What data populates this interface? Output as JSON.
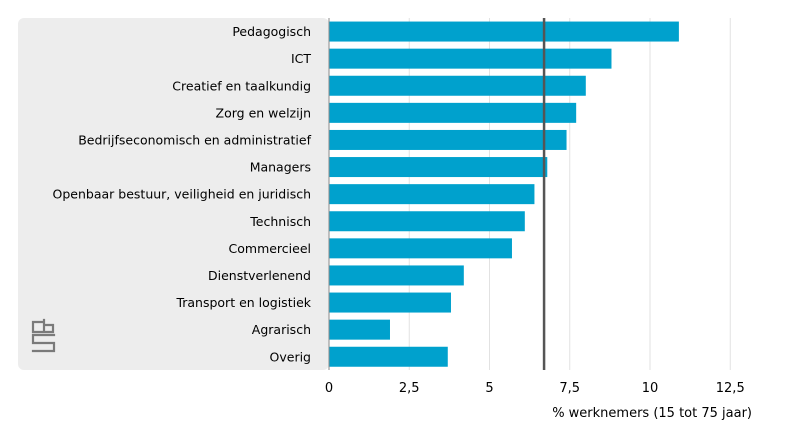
{
  "chart_data": {
    "type": "bar",
    "orientation": "horizontal",
    "categories": [
      "Pedagogisch",
      "ICT",
      "Creatief en taalkundig",
      "Zorg en welzijn",
      "Bedrijfseconomisch en administratief",
      "Managers",
      "Openbaar bestuur, veiligheid en juridisch",
      "Technisch",
      "Commercieel",
      "Dienstverlenend",
      "Transport en logistiek",
      "Agrarisch",
      "Overig"
    ],
    "values": [
      10.9,
      8.8,
      8.0,
      7.7,
      7.4,
      6.8,
      6.4,
      6.1,
      5.7,
      4.2,
      3.8,
      1.9,
      3.7
    ],
    "reference_line": 6.7,
    "xlabel": "% werknemers (15 tot 75 jaar)",
    "ylabel": "",
    "xlim": [
      0,
      13
    ],
    "x_ticks": [
      0,
      2.5,
      5,
      7.5,
      10,
      12.5
    ],
    "x_tick_labels": [
      "0",
      "2,5",
      "5",
      "7,5",
      "10",
      "12,5"
    ],
    "grid": "vertical",
    "colors": {
      "bar": "#00A1CD",
      "reference_line": "#555555",
      "category_panel": "#EDEDED",
      "grid": "#E2E2E2",
      "text": "#000000",
      "logo": "#7A7A7A"
    }
  },
  "logo": {
    "icon": "cbs-logo-icon"
  }
}
